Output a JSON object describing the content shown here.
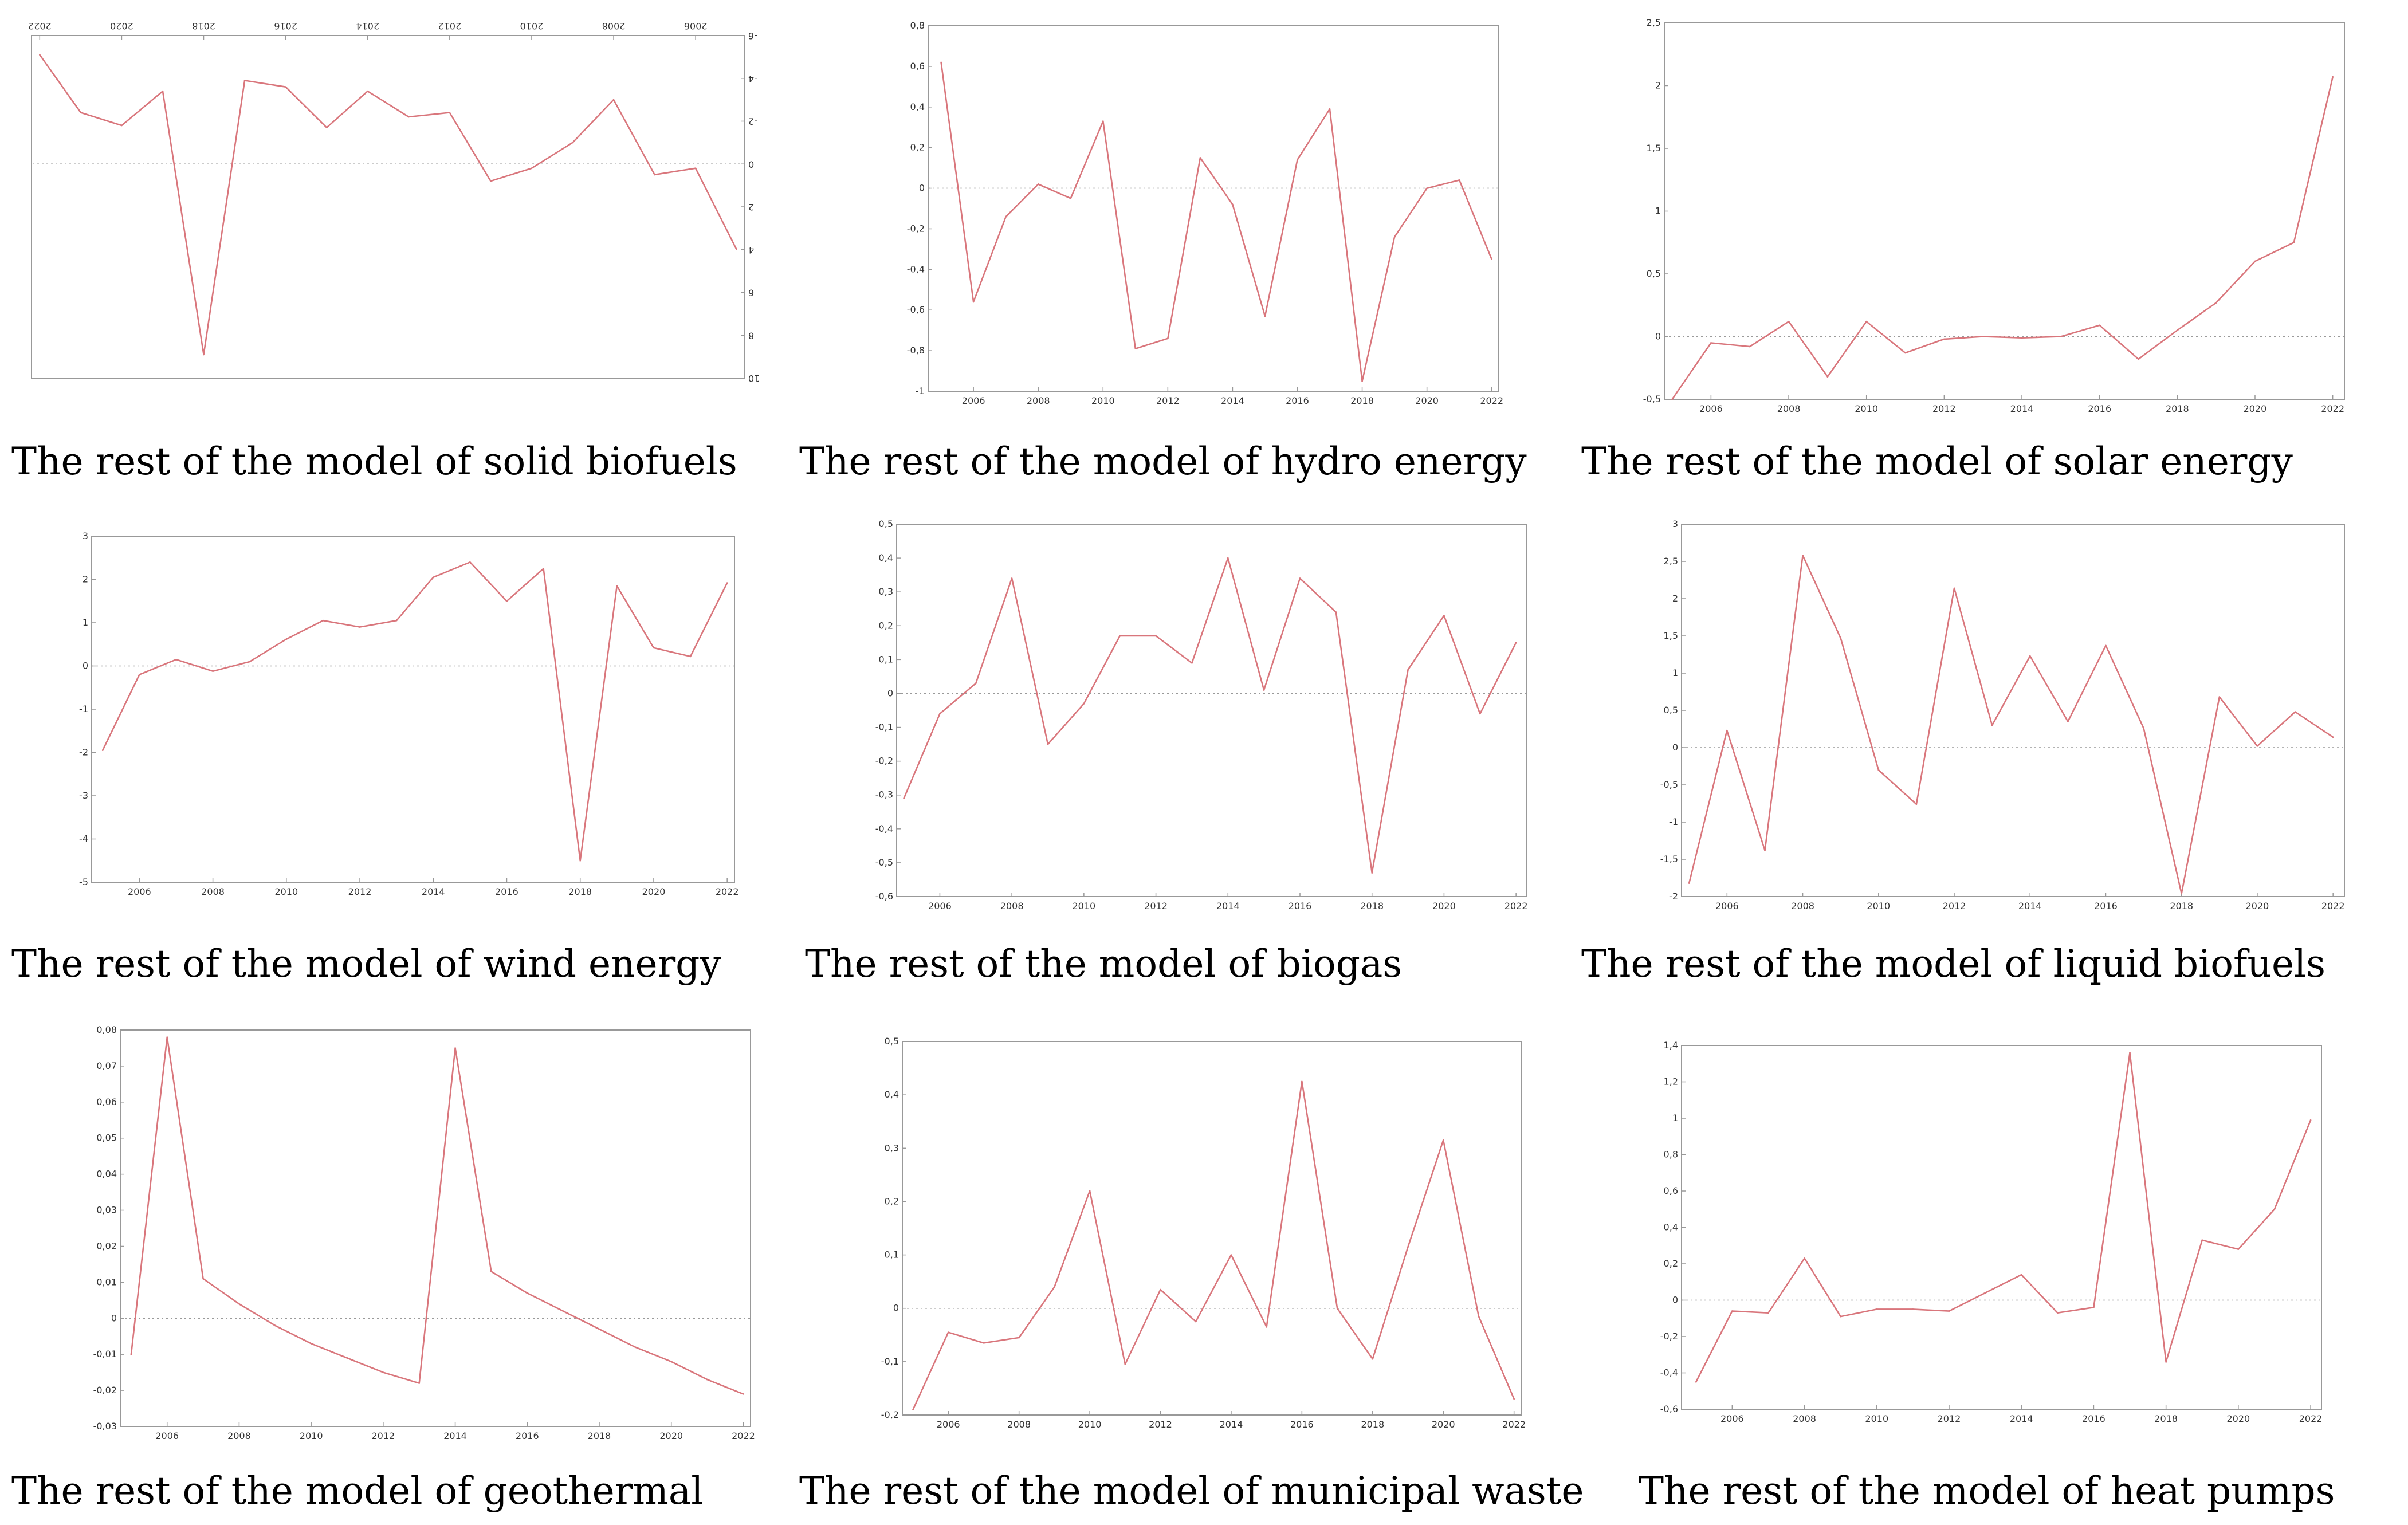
{
  "colors": {
    "line": "#d9767c",
    "frame": "#999999",
    "zero": "#9a9a9a",
    "text": "#333333",
    "background": "#ffffff"
  },
  "chart_data": [
    {
      "type": "line",
      "title": "The rest of the model of solid biofuels",
      "mirrored": true,
      "xlabel": "",
      "ylabel": "",
      "x": [
        2005,
        2006,
        2007,
        2008,
        2009,
        2010,
        2011,
        2012,
        2013,
        2014,
        2015,
        2016,
        2017,
        2018,
        2019,
        2020,
        2021,
        2022
      ],
      "values": [
        4.0,
        0.2,
        0.5,
        -3.0,
        -1.0,
        0.2,
        0.8,
        -2.4,
        -2.2,
        -3.4,
        -1.7,
        -3.6,
        -3.9,
        8.9,
        -3.4,
        -1.8,
        -2.4,
        -5.1
      ],
      "xlim": [
        2004.8,
        2022.2
      ],
      "ylim": [
        -6,
        10
      ],
      "xticks": [
        2006,
        2008,
        2010,
        2012,
        2014,
        2016,
        2018,
        2020,
        2022
      ],
      "xtick_labels": [
        "2006",
        "2008",
        "2010",
        "2012",
        "2014",
        "2016",
        "2018",
        "2020",
        "2022"
      ],
      "yticks": [
        -6,
        -4,
        -2,
        0,
        2,
        4,
        6,
        8,
        10
      ],
      "ytick_labels": [
        "-6",
        "-4",
        "-2",
        "0",
        "2",
        "4",
        "6",
        "8",
        "10"
      ],
      "zero_line": true
    },
    {
      "type": "line",
      "title": "The rest of the model of hydro energy",
      "xlabel": "",
      "ylabel": "",
      "x": [
        2005,
        2006,
        2007,
        2008,
        2009,
        2010,
        2011,
        2012,
        2013,
        2014,
        2015,
        2016,
        2017,
        2018,
        2019,
        2020,
        2021,
        2022
      ],
      "values": [
        0.62,
        -0.56,
        -0.14,
        0.02,
        -0.05,
        0.33,
        -0.79,
        -0.74,
        0.15,
        -0.08,
        -0.63,
        0.14,
        0.39,
        -0.95,
        -0.24,
        0.0,
        0.04,
        -0.35
      ],
      "xlim": [
        2004.6,
        2022.2
      ],
      "ylim": [
        -1,
        0.8
      ],
      "xticks": [
        2006,
        2008,
        2010,
        2012,
        2014,
        2016,
        2018,
        2020,
        2022
      ],
      "xtick_labels": [
        "2006",
        "2008",
        "2010",
        "2012",
        "2014",
        "2016",
        "2018",
        "2020",
        "2022"
      ],
      "yticks": [
        -1,
        -0.8,
        -0.6,
        -0.4,
        -0.2,
        0,
        0.2,
        0.4,
        0.6,
        0.8
      ],
      "ytick_labels": [
        "-1",
        "-0,8",
        "-0,6",
        "-0,4",
        "-0,2",
        "0",
        "0,2",
        "0,4",
        "0,6",
        "0,8"
      ],
      "zero_line": true
    },
    {
      "type": "line",
      "title": "The rest of the model of solar energy",
      "xlabel": "",
      "ylabel": "",
      "x": [
        2005,
        2006,
        2007,
        2008,
        2009,
        2010,
        2011,
        2012,
        2013,
        2014,
        2015,
        2016,
        2017,
        2018,
        2019,
        2020,
        2021,
        2022
      ],
      "values": [
        -0.5,
        -0.05,
        -0.08,
        0.12,
        -0.32,
        0.12,
        -0.13,
        -0.02,
        0.0,
        -0.01,
        0.0,
        0.09,
        -0.18,
        0.05,
        0.27,
        0.6,
        0.75,
        2.07
      ],
      "xlim": [
        2004.8,
        2022.3
      ],
      "ylim": [
        -0.5,
        2.5
      ],
      "xticks": [
        2006,
        2008,
        2010,
        2012,
        2014,
        2016,
        2018,
        2020,
        2022
      ],
      "xtick_labels": [
        "2006",
        "2008",
        "2010",
        "2012",
        "2014",
        "2016",
        "2018",
        "2020",
        "2022"
      ],
      "yticks": [
        -0.5,
        0,
        0.5,
        1,
        1.5,
        2,
        2.5
      ],
      "ytick_labels": [
        "-0,5",
        "0",
        "0,5",
        "1",
        "1,5",
        "2",
        "2,5"
      ],
      "zero_line": true
    },
    {
      "type": "line",
      "title": "The rest of the model of wind energy",
      "xlabel": "",
      "ylabel": "",
      "x": [
        2005,
        2006,
        2007,
        2008,
        2009,
        2010,
        2011,
        2012,
        2013,
        2014,
        2015,
        2016,
        2017,
        2018,
        2019,
        2020,
        2021,
        2022
      ],
      "values": [
        -1.95,
        -0.2,
        0.15,
        -0.12,
        0.1,
        0.62,
        1.05,
        0.9,
        1.05,
        2.05,
        2.4,
        1.5,
        2.25,
        -4.5,
        1.85,
        0.42,
        0.22,
        1.92
      ],
      "xlim": [
        2004.7,
        2022.2
      ],
      "ylim": [
        -5,
        3
      ],
      "xticks": [
        2006,
        2008,
        2010,
        2012,
        2014,
        2016,
        2018,
        2020,
        2022
      ],
      "xtick_labels": [
        "2006",
        "2008",
        "2010",
        "2012",
        "2014",
        "2016",
        "2018",
        "2020",
        "2022"
      ],
      "yticks": [
        -5,
        -4,
        -3,
        -2,
        -1,
        0,
        1,
        2,
        3
      ],
      "ytick_labels": [
        "-5",
        "-4",
        "-3",
        "-2",
        "-1",
        "0",
        "1",
        "2",
        "3"
      ],
      "zero_line": true
    },
    {
      "type": "line",
      "title": "The rest of the model of biogas",
      "xlabel": "",
      "ylabel": "",
      "x": [
        2005,
        2006,
        2007,
        2008,
        2009,
        2010,
        2011,
        2012,
        2013,
        2014,
        2015,
        2016,
        2017,
        2018,
        2019,
        2020,
        2021,
        2022
      ],
      "values": [
        -0.31,
        -0.06,
        0.03,
        0.34,
        -0.15,
        -0.03,
        0.17,
        0.17,
        0.09,
        0.4,
        0.01,
        0.34,
        0.24,
        -0.53,
        0.07,
        0.23,
        -0.06,
        0.15
      ],
      "xlim": [
        2004.8,
        2022.3
      ],
      "ylim": [
        -0.6,
        0.5
      ],
      "xticks": [
        2006,
        2008,
        2010,
        2012,
        2014,
        2016,
        2018,
        2020,
        2022
      ],
      "xtick_labels": [
        "2006",
        "2008",
        "2010",
        "2012",
        "2014",
        "2016",
        "2018",
        "2020",
        "2022"
      ],
      "yticks": [
        -0.6,
        -0.5,
        -0.4,
        -0.3,
        -0.2,
        -0.1,
        0,
        0.1,
        0.2,
        0.3,
        0.4,
        0.5
      ],
      "ytick_labels": [
        "-0,6",
        "-0,5",
        "-0,4",
        "-0,3",
        "-0,2",
        "-0,1",
        "0",
        "0,1",
        "0,2",
        "0,3",
        "0,4",
        "0,5"
      ],
      "zero_line": true
    },
    {
      "type": "line",
      "title": "The rest of the model of liquid biofuels",
      "xlabel": "",
      "ylabel": "",
      "x": [
        2005,
        2006,
        2007,
        2008,
        2009,
        2010,
        2011,
        2012,
        2013,
        2014,
        2015,
        2016,
        2017,
        2018,
        2019,
        2020,
        2021,
        2022
      ],
      "values": [
        -1.82,
        0.23,
        -1.38,
        2.58,
        1.47,
        -0.3,
        -0.76,
        2.14,
        0.3,
        1.23,
        0.35,
        1.37,
        0.26,
        -1.96,
        0.68,
        0.02,
        0.48,
        0.14
      ],
      "xlim": [
        2004.8,
        2022.3
      ],
      "ylim": [
        -2,
        3
      ],
      "xticks": [
        2006,
        2008,
        2010,
        2012,
        2014,
        2016,
        2018,
        2020,
        2022
      ],
      "xtick_labels": [
        "2006",
        "2008",
        "2010",
        "2012",
        "2014",
        "2016",
        "2018",
        "2020",
        "2022"
      ],
      "yticks": [
        -2,
        -1.5,
        -1,
        -0.5,
        0,
        0.5,
        1,
        1.5,
        2,
        2.5,
        3
      ],
      "ytick_labels": [
        "-2",
        "-1,5",
        "-1",
        "-0,5",
        "0",
        "0,5",
        "1",
        "1,5",
        "2",
        "2,5",
        "3"
      ],
      "zero_line": true
    },
    {
      "type": "line",
      "title": "The rest of the model of geothermal",
      "xlabel": "",
      "ylabel": "",
      "x": [
        2005,
        2006,
        2007,
        2008,
        2009,
        2010,
        2011,
        2012,
        2013,
        2014,
        2015,
        2016,
        2017,
        2018,
        2019,
        2020,
        2021,
        2022
      ],
      "values": [
        -0.01,
        0.078,
        0.011,
        0.004,
        -0.002,
        -0.007,
        -0.011,
        -0.015,
        -0.018,
        0.075,
        0.013,
        0.007,
        0.002,
        -0.003,
        -0.008,
        -0.012,
        -0.017,
        -0.021
      ],
      "xlim": [
        2004.7,
        2022.2
      ],
      "ylim": [
        -0.03,
        0.08
      ],
      "xticks": [
        2006,
        2008,
        2010,
        2012,
        2014,
        2016,
        2018,
        2020,
        2022
      ],
      "xtick_labels": [
        "2006",
        "2008",
        "2010",
        "2012",
        "2014",
        "2016",
        "2018",
        "2020",
        "2022"
      ],
      "yticks": [
        -0.03,
        -0.02,
        -0.01,
        0,
        0.01,
        0.02,
        0.03,
        0.04,
        0.05,
        0.06,
        0.07,
        0.08
      ],
      "ytick_labels": [
        "-0,03",
        "-0,02",
        "-0,01",
        "0",
        "0,01",
        "0,02",
        "0,03",
        "0,04",
        "0,05",
        "0,06",
        "0,07",
        "0,08"
      ],
      "zero_line": true
    },
    {
      "type": "line",
      "title": "The rest of the model of municipal waste",
      "xlabel": "",
      "ylabel": "",
      "x": [
        2005,
        2006,
        2007,
        2008,
        2009,
        2010,
        2011,
        2012,
        2013,
        2014,
        2015,
        2016,
        2017,
        2018,
        2019,
        2020,
        2021,
        2022
      ],
      "values": [
        -0.19,
        -0.045,
        -0.065,
        -0.055,
        0.04,
        0.22,
        -0.105,
        0.035,
        -0.025,
        0.1,
        -0.035,
        0.425,
        0.0,
        -0.095,
        0.115,
        0.315,
        -0.015,
        -0.17
      ],
      "xlim": [
        2004.7,
        2022.2
      ],
      "ylim": [
        -0.2,
        0.5
      ],
      "xticks": [
        2006,
        2008,
        2010,
        2012,
        2014,
        2016,
        2018,
        2020,
        2022
      ],
      "xtick_labels": [
        "2006",
        "2008",
        "2010",
        "2012",
        "2014",
        "2016",
        "2018",
        "2020",
        "2022"
      ],
      "yticks": [
        -0.2,
        -0.1,
        0,
        0.1,
        0.2,
        0.3,
        0.4,
        0.5
      ],
      "ytick_labels": [
        "-0,2",
        "-0,1",
        "0",
        "0,1",
        "0,2",
        "0,3",
        "0,4",
        "0,5"
      ],
      "zero_line": true
    },
    {
      "type": "line",
      "title": "The rest of the model of heat pumps",
      "xlabel": "",
      "ylabel": "",
      "x": [
        2005,
        2006,
        2007,
        2008,
        2009,
        2010,
        2011,
        2012,
        2013,
        2014,
        2015,
        2016,
        2017,
        2018,
        2019,
        2020,
        2021,
        2022
      ],
      "values": [
        -0.45,
        -0.06,
        -0.07,
        0.23,
        -0.09,
        -0.05,
        -0.05,
        -0.06,
        0.04,
        0.14,
        -0.07,
        -0.04,
        1.36,
        -0.34,
        0.33,
        0.28,
        0.5,
        0.99
      ],
      "xlim": [
        2004.6,
        2022.3
      ],
      "ylim": [
        -0.6,
        1.4
      ],
      "xticks": [
        2006,
        2008,
        2010,
        2012,
        2014,
        2016,
        2018,
        2020,
        2022
      ],
      "xtick_labels": [
        "2006",
        "2008",
        "2010",
        "2012",
        "2014",
        "2016",
        "2018",
        "2020",
        "2022"
      ],
      "yticks": [
        -0.6,
        -0.4,
        -0.2,
        0,
        0.2,
        0.4,
        0.6,
        0.8,
        1,
        1.2,
        1.4
      ],
      "ytick_labels": [
        "-0,6",
        "-0,4",
        "-0,2",
        "0",
        "0,2",
        "0,4",
        "0,6",
        "0,8",
        "1",
        "1,2",
        "1,4"
      ],
      "zero_line": true
    }
  ]
}
